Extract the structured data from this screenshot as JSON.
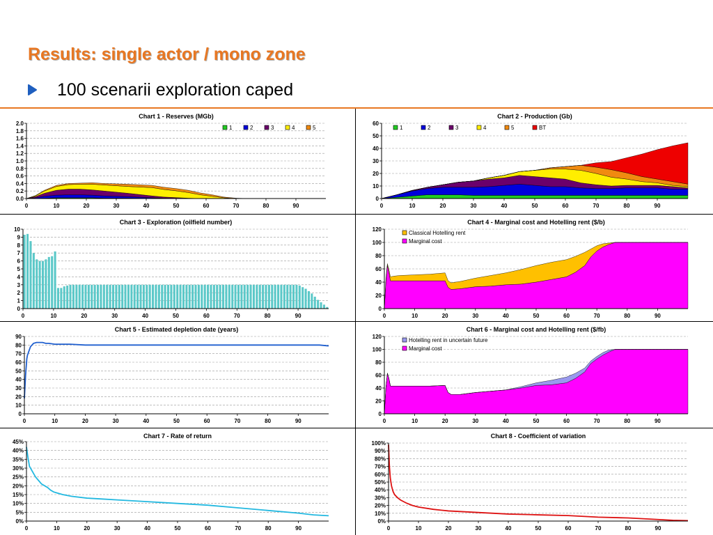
{
  "slide": {
    "title": "Results: single actor / mono zone",
    "bullet": "100 scenarii exploration caped"
  },
  "colors": {
    "accent": "#e87722",
    "bullet": "#1f5fbf"
  },
  "chart_data": [
    {
      "id": "c1",
      "type": "area",
      "stacked": true,
      "title": "Chart 1 - Reserves (MGb)",
      "x": [
        0,
        3,
        6,
        10,
        14,
        18,
        22,
        26,
        30,
        34,
        38,
        42,
        46,
        50,
        54,
        58,
        62,
        66,
        70,
        74
      ],
      "series": [
        {
          "name": "1",
          "color": "#22cc22",
          "values": [
            0,
            0,
            0.01,
            0.02,
            0.02,
            0.02,
            0.02,
            0.01,
            0.01,
            0.01,
            0.005,
            0,
            0,
            0,
            0,
            0,
            0,
            0,
            0,
            0
          ]
        },
        {
          "name": "2",
          "color": "#0000dd",
          "values": [
            0,
            0.02,
            0.05,
            0.07,
            0.08,
            0.08,
            0.07,
            0.06,
            0.05,
            0.04,
            0.03,
            0.02,
            0.01,
            0.005,
            0,
            0,
            0,
            0,
            0,
            0
          ]
        },
        {
          "name": "3",
          "color": "#6b006b",
          "values": [
            0,
            0.03,
            0.08,
            0.13,
            0.15,
            0.15,
            0.14,
            0.13,
            0.11,
            0.09,
            0.07,
            0.05,
            0.03,
            0.02,
            0.01,
            0,
            0,
            0,
            0,
            0
          ]
        },
        {
          "name": "4",
          "color": "#ffee00",
          "values": [
            0,
            0.02,
            0.06,
            0.1,
            0.12,
            0.13,
            0.15,
            0.16,
            0.17,
            0.18,
            0.2,
            0.22,
            0.2,
            0.18,
            0.15,
            0.1,
            0.06,
            0.02,
            0,
            0
          ]
        },
        {
          "name": "5",
          "color": "#f08a10",
          "values": [
            0,
            0.01,
            0.02,
            0.03,
            0.03,
            0.03,
            0.04,
            0.04,
            0.05,
            0.06,
            0.06,
            0.06,
            0.06,
            0.06,
            0.06,
            0.05,
            0.04,
            0.02,
            0.01,
            0
          ]
        }
      ],
      "xlim": [
        0,
        100
      ],
      "ylim": [
        0,
        2.0
      ],
      "yticks": [
        "0.0",
        "0.2",
        "0.4",
        "0.6",
        "0.8",
        "1.0",
        "1.2",
        "1.4",
        "1.6",
        "1.8",
        "2.0"
      ],
      "xticks": [
        "0",
        "10",
        "20",
        "30",
        "40",
        "50",
        "60",
        "70",
        "80",
        "90"
      ],
      "grid": true,
      "legend": "top-right"
    },
    {
      "id": "c2",
      "type": "area",
      "stacked": true,
      "title": "Chart 2 - Production (Gb)",
      "x": [
        0,
        5,
        10,
        15,
        20,
        25,
        30,
        35,
        40,
        45,
        50,
        55,
        60,
        65,
        70,
        75,
        80,
        85,
        90,
        95,
        100
      ],
      "series": [
        {
          "name": "1",
          "color": "#22cc22",
          "values": [
            0,
            1,
            2,
            3,
            3,
            3,
            2.5,
            2.5,
            2.5,
            2.5,
            2.5,
            2.5,
            2.5,
            2.5,
            2.5,
            2.5,
            2.5,
            2.5,
            2.5,
            2.5,
            2.5
          ]
        },
        {
          "name": "2",
          "color": "#0000dd",
          "values": [
            0,
            2,
            4,
            5,
            6,
            6,
            6.5,
            7,
            8,
            9,
            8,
            7,
            7,
            6,
            5.5,
            5.5,
            6,
            6,
            6,
            5,
            5
          ]
        },
        {
          "name": "3",
          "color": "#6b006b",
          "values": [
            0,
            0,
            0.5,
            1,
            2,
            4,
            5,
            6,
            6,
            7,
            7,
            7,
            6,
            4,
            3,
            2,
            2,
            2,
            2,
            2,
            1
          ]
        },
        {
          "name": "4",
          "color": "#ffee00",
          "values": [
            0,
            0,
            0,
            0,
            0,
            0,
            0,
            1,
            2,
            3,
            5,
            7,
            8,
            10,
            9,
            7,
            5,
            3,
            2,
            1,
            1
          ]
        },
        {
          "name": "5",
          "color": "#f08a10",
          "values": [
            0,
            0,
            0,
            0,
            0,
            0,
            0,
            0,
            0,
            0,
            0,
            1,
            2,
            4,
            5,
            6,
            5,
            4,
            3,
            3,
            2
          ]
        },
        {
          "name": "BT",
          "color": "#ee0000",
          "values": [
            0,
            0,
            0,
            0,
            0,
            0,
            0,
            0,
            0,
            0,
            0,
            0,
            0,
            0,
            3.5,
            6.5,
            12,
            18,
            23.5,
            28.5,
            33
          ]
        }
      ],
      "xlim": [
        0,
        100
      ],
      "ylim": [
        0,
        60
      ],
      "yticks": [
        "0",
        "10",
        "20",
        "30",
        "40",
        "50",
        "60"
      ],
      "xticks": [
        "0",
        "10",
        "20",
        "30",
        "40",
        "50",
        "60",
        "70",
        "80",
        "90"
      ],
      "grid": true,
      "legend": "top-left"
    },
    {
      "id": "c3",
      "type": "bar",
      "title": "Chart 3 - Exploration (oilfield number)",
      "color": "#5bc8c8",
      "values": [
        9.3,
        9.4,
        8.5,
        7.0,
        6.2,
        6.0,
        6.0,
        6.2,
        6.5,
        6.6,
        7.2,
        2.6,
        2.6,
        2.8,
        2.9,
        3,
        3,
        3,
        3,
        3,
        3,
        3,
        3,
        3,
        3,
        3,
        3,
        3,
        3,
        3,
        3,
        3,
        3,
        3,
        3,
        3,
        3,
        3,
        3,
        3,
        3,
        3,
        3,
        3,
        3,
        3,
        3,
        3,
        3,
        3,
        3,
        3,
        3,
        3,
        3,
        3,
        3,
        3,
        3,
        3,
        3,
        3,
        3,
        3,
        3,
        3,
        3,
        3,
        3,
        3,
        3,
        3,
        3,
        3,
        3,
        3,
        3,
        3,
        3,
        3,
        3,
        3,
        3,
        3,
        3,
        3,
        3,
        3,
        3,
        3,
        2.9,
        2.7,
        2.5,
        2.2,
        1.9,
        1.5,
        1.1,
        0.8,
        0.5,
        0.2
      ],
      "xlim": [
        0,
        100
      ],
      "ylim": [
        0,
        10
      ],
      "yticks": [
        "0",
        "1",
        "2",
        "3",
        "4",
        "5",
        "6",
        "7",
        "8",
        "9",
        "10"
      ],
      "xticks": [
        "0",
        "10",
        "20",
        "30",
        "40",
        "50",
        "60",
        "70",
        "80",
        "90"
      ],
      "grid": true
    },
    {
      "id": "c4",
      "type": "area",
      "stacked": true,
      "title": "Chart 4 - Marginal cost and Hotelling rent ($/b)",
      "x": [
        0,
        0.5,
        1,
        1.5,
        2,
        3,
        5,
        10,
        15,
        20,
        21,
        22,
        25,
        30,
        35,
        40,
        45,
        50,
        55,
        60,
        63,
        66,
        68,
        70,
        72,
        74,
        76,
        80,
        85,
        90,
        95,
        100
      ],
      "series": [
        {
          "name": "Marginal cost",
          "color": "#ff00ff",
          "values": [
            0,
            40,
            66,
            55,
            42,
            42,
            42,
            42,
            42,
            42,
            32,
            29,
            30,
            33,
            34,
            36,
            37,
            40,
            44,
            48,
            55,
            65,
            78,
            87,
            93,
            97,
            100,
            100,
            100,
            100,
            100,
            100
          ]
        },
        {
          "name": "Classical Hotelling rent",
          "color": "#ffc000",
          "values": [
            0,
            5,
            2,
            4,
            6,
            7,
            8,
            9,
            10,
            12,
            10,
            10,
            11,
            13,
            16,
            18,
            22,
            25,
            26,
            26,
            24,
            20,
            12,
            8,
            5,
            2,
            0,
            0,
            0,
            0,
            0,
            0
          ]
        }
      ],
      "xlim": [
        0,
        100
      ],
      "ylim": [
        0,
        120
      ],
      "yticks": [
        "0",
        "20",
        "40",
        "60",
        "80",
        "100",
        "120"
      ],
      "xticks": [
        "0",
        "10",
        "20",
        "30",
        "40",
        "50",
        "60",
        "70",
        "80",
        "90"
      ],
      "grid": true,
      "legend": "top-left"
    },
    {
      "id": "c5",
      "type": "line",
      "title": "Chart 5 - Estimated depletion date (years)",
      "color": "#1f5fcf",
      "x": [
        0,
        0.4,
        0.8,
        1,
        1.5,
        2,
        3,
        4,
        5,
        6,
        7,
        8,
        10,
        15,
        20,
        30,
        40,
        45,
        50,
        60,
        70,
        80,
        90,
        97,
        100
      ],
      "values": [
        18,
        45,
        64,
        68,
        73,
        78,
        82,
        83,
        83,
        83,
        82,
        82,
        81,
        81,
        80,
        80,
        80,
        80,
        80,
        80,
        80,
        80,
        80,
        80,
        79
      ],
      "xlim": [
        0,
        100
      ],
      "ylim": [
        0,
        90
      ],
      "yticks": [
        "0",
        "10",
        "20",
        "30",
        "40",
        "50",
        "60",
        "70",
        "80",
        "90"
      ],
      "xticks": [
        "0",
        "10",
        "20",
        "30",
        "40",
        "50",
        "60",
        "70",
        "80",
        "90"
      ],
      "grid": true
    },
    {
      "id": "c6",
      "type": "area",
      "stacked": true,
      "title": "Chart 6 - Marginal cost and Hotelling rent ($/fb)",
      "x": [
        0,
        0.5,
        1,
        1.5,
        2,
        3,
        5,
        10,
        15,
        20,
        21,
        22,
        25,
        30,
        35,
        40,
        45,
        50,
        55,
        60,
        63,
        66,
        68,
        70,
        72,
        74,
        76,
        80,
        85,
        90,
        95,
        100
      ],
      "series": [
        {
          "name": "Marginal cost",
          "color": "#ff00ff",
          "values": [
            0,
            40,
            63,
            55,
            43,
            43,
            43,
            43,
            43,
            44,
            33,
            30,
            30,
            33,
            35,
            37,
            40,
            44,
            45,
            48,
            55,
            65,
            78,
            85,
            91,
            96,
            100,
            100,
            100,
            100,
            100,
            100
          ]
        },
        {
          "name": "Hotelling rent in uncertain future",
          "color": "#9999ee",
          "values": [
            0,
            0,
            0,
            0,
            0,
            0,
            0,
            0,
            0,
            0,
            0,
            0,
            0,
            0,
            0,
            0,
            2,
            4,
            7,
            9,
            8,
            6,
            4,
            4,
            4,
            3,
            0,
            0,
            0,
            0,
            0,
            0
          ]
        }
      ],
      "xlim": [
        0,
        100
      ],
      "ylim": [
        0,
        120
      ],
      "yticks": [
        "0",
        "20",
        "40",
        "60",
        "80",
        "100",
        "120"
      ],
      "xticks": [
        "0",
        "10",
        "20",
        "30",
        "40",
        "50",
        "60",
        "70",
        "80",
        "90"
      ],
      "grid": true,
      "legend": "top-left"
    },
    {
      "id": "c7",
      "type": "line",
      "title": "Chart 7 - Rate of return",
      "color": "#22b8e0",
      "x": [
        0,
        0.5,
        1,
        2,
        3,
        4,
        5,
        6,
        7,
        8,
        9,
        10,
        12,
        15,
        20,
        25,
        30,
        40,
        50,
        60,
        70,
        80,
        90,
        95,
        100
      ],
      "values": [
        42,
        36,
        31,
        28,
        25,
        23,
        21,
        20,
        19,
        17.5,
        16.5,
        16,
        15,
        14,
        13,
        12.5,
        12,
        11,
        10,
        9,
        7.5,
        6,
        4.5,
        3.5,
        3
      ],
      "xlim": [
        0,
        100
      ],
      "ylim": [
        0,
        45
      ],
      "yticks": [
        "0%",
        "5%",
        "10%",
        "15%",
        "20%",
        "25%",
        "30%",
        "35%",
        "40%",
        "45%"
      ],
      "xticks": [
        "0",
        "10",
        "20",
        "30",
        "40",
        "50",
        "60",
        "70",
        "80",
        "90"
      ],
      "grid": true
    },
    {
      "id": "c8",
      "type": "line",
      "title": "Chart 8 - Coefficient of variation",
      "color": "#dd1111",
      "x": [
        0,
        0.3,
        0.6,
        1,
        1.5,
        2,
        3,
        4,
        5,
        6,
        8,
        10,
        15,
        20,
        30,
        40,
        50,
        60,
        70,
        80,
        90,
        95,
        100
      ],
      "values": [
        98,
        70,
        55,
        45,
        38,
        34,
        30,
        27,
        25,
        23,
        20,
        18,
        15,
        13,
        11,
        9,
        8,
        7,
        5,
        4,
        2,
        1,
        0.5
      ],
      "xlim": [
        0,
        100
      ],
      "ylim": [
        0,
        100
      ],
      "yticks": [
        "0%",
        "10%",
        "20%",
        "30%",
        "40%",
        "50%",
        "60%",
        "70%",
        "80%",
        "90%",
        "100%"
      ],
      "xticks": [
        "0",
        "10",
        "20",
        "30",
        "40",
        "50",
        "60",
        "70",
        "80",
        "90"
      ],
      "grid": true
    }
  ]
}
